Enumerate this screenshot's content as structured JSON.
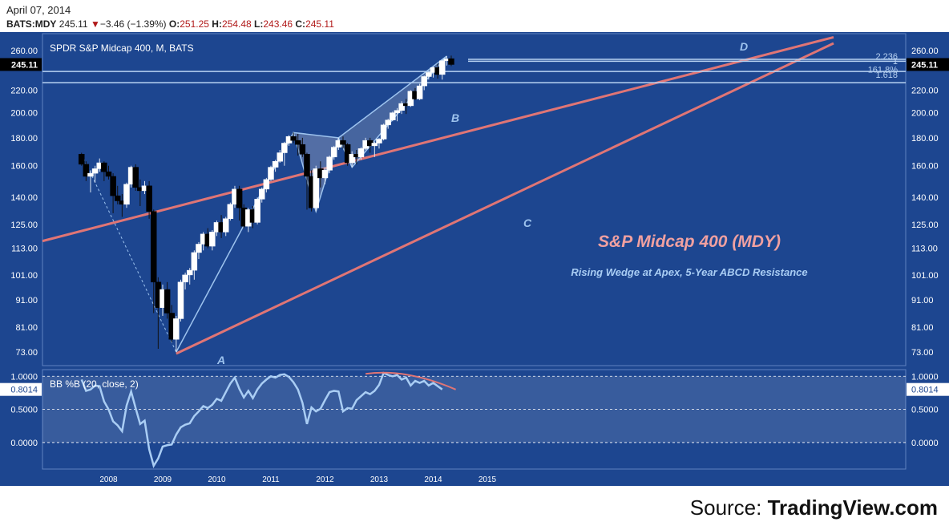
{
  "header": {
    "date": "April 07, 2014",
    "symbol": "BATS:MDY",
    "last": "245.11",
    "change": "−3.46 (−1.39%)",
    "open_label": "O:",
    "open": "251.25",
    "high_label": "H:",
    "high": "254.48",
    "low_label": "L:",
    "low": "243.46",
    "close_label": "C:",
    "close": "245.11"
  },
  "source": {
    "prefix": "Source: ",
    "brand": "TradingView.com"
  },
  "colors": {
    "panel_bg": "#1d4690",
    "up_candle": "#ffffff",
    "down_candle": "#000000",
    "wedge_line": "#e07575",
    "abcd_line": "#9dc3ee",
    "fib_line": "#b9d3f2",
    "indicator_line": "#a9cdf4",
    "title_color": "#f0a0a0",
    "subtitle_color": "#a9cdf4",
    "axis_text": "#ffffff"
  },
  "chart_data": [
    {
      "type": "candlestick",
      "title": "SPDR S&P Midcap 400, M, BATS",
      "scale": "log",
      "y_ticks": [
        "260.00",
        "245.11",
        "220.00",
        "200.00",
        "180.00",
        "160.00",
        "140.00",
        "125.00",
        "113.00",
        "101.00",
        "91.00",
        "81.00",
        "73.00"
      ],
      "last_price_label": "245.11",
      "x_ticks": [
        "2008",
        "2009",
        "2010",
        "2011",
        "2012",
        "2013",
        "2014",
        "2015"
      ],
      "annotations": {
        "main_title": "S&P Midcap 400 (MDY)",
        "subtitle": "Rising Wedge at Apex, 5-Year ABCD Resistance",
        "points": [
          "A",
          "B",
          "C",
          "D"
        ],
        "fib_labels": [
          "2.236",
          "1",
          "161.8%",
          "1.618"
        ]
      },
      "candles": [
        {
          "d": "2007-06",
          "o": 168,
          "h": 169,
          "l": 160,
          "c": 161
        },
        {
          "d": "2007-07",
          "o": 161,
          "h": 163,
          "l": 150,
          "c": 153
        },
        {
          "d": "2007-08",
          "o": 153,
          "h": 157,
          "l": 143,
          "c": 155
        },
        {
          "d": "2007-09",
          "o": 155,
          "h": 160,
          "l": 149,
          "c": 158
        },
        {
          "d": "2007-10",
          "o": 158,
          "h": 165,
          "l": 156,
          "c": 162
        },
        {
          "d": "2007-11",
          "o": 162,
          "h": 163,
          "l": 150,
          "c": 156
        },
        {
          "d": "2007-12",
          "o": 156,
          "h": 160,
          "l": 151,
          "c": 153
        },
        {
          "d": "2008-01",
          "o": 153,
          "h": 155,
          "l": 131,
          "c": 141
        },
        {
          "d": "2008-02",
          "o": 141,
          "h": 147,
          "l": 136,
          "c": 138
        },
        {
          "d": "2008-03",
          "o": 138,
          "h": 142,
          "l": 129,
          "c": 136
        },
        {
          "d": "2008-04",
          "o": 136,
          "h": 149,
          "l": 134,
          "c": 148
        },
        {
          "d": "2008-05",
          "o": 148,
          "h": 160,
          "l": 146,
          "c": 159
        },
        {
          "d": "2008-06",
          "o": 159,
          "h": 161,
          "l": 144,
          "c": 146
        },
        {
          "d": "2008-07",
          "o": 146,
          "h": 151,
          "l": 135,
          "c": 144
        },
        {
          "d": "2008-08",
          "o": 144,
          "h": 150,
          "l": 142,
          "c": 147
        },
        {
          "d": "2008-09",
          "o": 147,
          "h": 150,
          "l": 128,
          "c": 132
        },
        {
          "d": "2008-10",
          "o": 132,
          "h": 133,
          "l": 86,
          "c": 98
        },
        {
          "d": "2008-11",
          "o": 98,
          "h": 100,
          "l": 74,
          "c": 88
        },
        {
          "d": "2008-12",
          "o": 88,
          "h": 97,
          "l": 85,
          "c": 95
        },
        {
          "d": "2009-01",
          "o": 95,
          "h": 98,
          "l": 84,
          "c": 86
        },
        {
          "d": "2009-02",
          "o": 86,
          "h": 89,
          "l": 76,
          "c": 77
        },
        {
          "d": "2009-03",
          "o": 77,
          "h": 85,
          "l": 73,
          "c": 84
        },
        {
          "d": "2009-04",
          "o": 84,
          "h": 99,
          "l": 83,
          "c": 98
        },
        {
          "d": "2009-05",
          "o": 98,
          "h": 102,
          "l": 95,
          "c": 101
        },
        {
          "d": "2009-06",
          "o": 101,
          "h": 104,
          "l": 97,
          "c": 103
        },
        {
          "d": "2009-07",
          "o": 103,
          "h": 112,
          "l": 99,
          "c": 111
        },
        {
          "d": "2009-08",
          "o": 111,
          "h": 116,
          "l": 108,
          "c": 115
        },
        {
          "d": "2009-09",
          "o": 115,
          "h": 121,
          "l": 112,
          "c": 120
        },
        {
          "d": "2009-10",
          "o": 120,
          "h": 123,
          "l": 113,
          "c": 114
        },
        {
          "d": "2009-11",
          "o": 114,
          "h": 122,
          "l": 112,
          "c": 121
        },
        {
          "d": "2009-12",
          "o": 121,
          "h": 127,
          "l": 119,
          "c": 126
        },
        {
          "d": "2010-01",
          "o": 126,
          "h": 130,
          "l": 118,
          "c": 121
        },
        {
          "d": "2010-02",
          "o": 121,
          "h": 129,
          "l": 119,
          "c": 128
        },
        {
          "d": "2010-03",
          "o": 128,
          "h": 137,
          "l": 127,
          "c": 136
        },
        {
          "d": "2010-04",
          "o": 136,
          "h": 147,
          "l": 134,
          "c": 145
        },
        {
          "d": "2010-05",
          "o": 145,
          "h": 147,
          "l": 127,
          "c": 134
        },
        {
          "d": "2010-06",
          "o": 134,
          "h": 136,
          "l": 123,
          "c": 124
        },
        {
          "d": "2010-07",
          "o": 124,
          "h": 134,
          "l": 121,
          "c": 133
        },
        {
          "d": "2010-08",
          "o": 133,
          "h": 135,
          "l": 123,
          "c": 126
        },
        {
          "d": "2010-09",
          "o": 126,
          "h": 140,
          "l": 125,
          "c": 139
        },
        {
          "d": "2010-10",
          "o": 139,
          "h": 146,
          "l": 137,
          "c": 145
        },
        {
          "d": "2010-11",
          "o": 145,
          "h": 152,
          "l": 143,
          "c": 151
        },
        {
          "d": "2010-12",
          "o": 151,
          "h": 160,
          "l": 150,
          "c": 159
        },
        {
          "d": "2011-01",
          "o": 159,
          "h": 164,
          "l": 156,
          "c": 163
        },
        {
          "d": "2011-02",
          "o": 163,
          "h": 171,
          "l": 162,
          "c": 169
        },
        {
          "d": "2011-03",
          "o": 169,
          "h": 177,
          "l": 160,
          "c": 176
        },
        {
          "d": "2011-04",
          "o": 176,
          "h": 182,
          "l": 174,
          "c": 181
        },
        {
          "d": "2011-05",
          "o": 181,
          "h": 184,
          "l": 176,
          "c": 178
        },
        {
          "d": "2011-06",
          "o": 178,
          "h": 183,
          "l": 167,
          "c": 175
        },
        {
          "d": "2011-07",
          "o": 175,
          "h": 180,
          "l": 166,
          "c": 168
        },
        {
          "d": "2011-08",
          "o": 168,
          "h": 169,
          "l": 133,
          "c": 153
        },
        {
          "d": "2011-09",
          "o": 153,
          "h": 157,
          "l": 132,
          "c": 134
        },
        {
          "d": "2011-10",
          "o": 134,
          "h": 160,
          "l": 132,
          "c": 158
        },
        {
          "d": "2011-11",
          "o": 158,
          "h": 163,
          "l": 146,
          "c": 152
        },
        {
          "d": "2011-12",
          "o": 152,
          "h": 159,
          "l": 148,
          "c": 157
        },
        {
          "d": "2012-01",
          "o": 157,
          "h": 167,
          "l": 155,
          "c": 166
        },
        {
          "d": "2012-02",
          "o": 166,
          "h": 174,
          "l": 164,
          "c": 173
        },
        {
          "d": "2012-03",
          "o": 173,
          "h": 180,
          "l": 171,
          "c": 178
        },
        {
          "d": "2012-04",
          "o": 178,
          "h": 181,
          "l": 172,
          "c": 175
        },
        {
          "d": "2012-05",
          "o": 175,
          "h": 176,
          "l": 160,
          "c": 162
        },
        {
          "d": "2012-06",
          "o": 162,
          "h": 170,
          "l": 159,
          "c": 168
        },
        {
          "d": "2012-07",
          "o": 168,
          "h": 171,
          "l": 161,
          "c": 166
        },
        {
          "d": "2012-08",
          "o": 166,
          "h": 173,
          "l": 164,
          "c": 172
        },
        {
          "d": "2012-09",
          "o": 172,
          "h": 180,
          "l": 171,
          "c": 178
        },
        {
          "d": "2012-10",
          "o": 178,
          "h": 180,
          "l": 169,
          "c": 174
        },
        {
          "d": "2012-11",
          "o": 174,
          "h": 177,
          "l": 166,
          "c": 176
        },
        {
          "d": "2012-12",
          "o": 176,
          "h": 180,
          "l": 172,
          "c": 179
        },
        {
          "d": "2013-01",
          "o": 179,
          "h": 191,
          "l": 178,
          "c": 190
        },
        {
          "d": "2013-02",
          "o": 190,
          "h": 195,
          "l": 187,
          "c": 194
        },
        {
          "d": "2013-03",
          "o": 194,
          "h": 201,
          "l": 193,
          "c": 200
        },
        {
          "d": "2013-04",
          "o": 200,
          "h": 204,
          "l": 193,
          "c": 202
        },
        {
          "d": "2013-05",
          "o": 202,
          "h": 210,
          "l": 199,
          "c": 208
        },
        {
          "d": "2013-06",
          "o": 208,
          "h": 212,
          "l": 199,
          "c": 206
        },
        {
          "d": "2013-07",
          "o": 206,
          "h": 220,
          "l": 205,
          "c": 219
        },
        {
          "d": "2013-08",
          "o": 219,
          "h": 222,
          "l": 211,
          "c": 212
        },
        {
          "d": "2013-09",
          "o": 212,
          "h": 226,
          "l": 211,
          "c": 224
        },
        {
          "d": "2013-10",
          "o": 224,
          "h": 234,
          "l": 220,
          "c": 233
        },
        {
          "d": "2013-11",
          "o": 233,
          "h": 238,
          "l": 230,
          "c": 237
        },
        {
          "d": "2013-12",
          "o": 237,
          "h": 243,
          "l": 232,
          "c": 242
        },
        {
          "d": "2014-01",
          "o": 242,
          "h": 246,
          "l": 231,
          "c": 235
        },
        {
          "d": "2014-02",
          "o": 235,
          "h": 250,
          "l": 230,
          "c": 249
        },
        {
          "d": "2014-03",
          "o": 249,
          "h": 254,
          "l": 244,
          "c": 251
        },
        {
          "d": "2014-04",
          "o": 251.25,
          "h": 254.48,
          "l": 243.46,
          "c": 245.11
        }
      ]
    },
    {
      "type": "line",
      "title": "BB %B (20, close, 2)",
      "last_value": "0.8014",
      "y_ticks": [
        "1.0000",
        "0.5000",
        "0.0000"
      ],
      "ylim": [
        -0.4,
        1.1
      ],
      "series": [
        {
          "name": "",
          "values": [
            0.95,
            0.78,
            0.8,
            0.86,
            0.85,
            0.62,
            0.5,
            0.32,
            0.26,
            0.17,
            0.56,
            0.77,
            0.52,
            0.28,
            0.33,
            -0.1,
            -0.35,
            -0.24,
            -0.06,
            -0.04,
            -0.03,
            0.12,
            0.23,
            0.27,
            0.29,
            0.4,
            0.47,
            0.55,
            0.52,
            0.57,
            0.66,
            0.63,
            0.76,
            0.89,
            0.98,
            0.81,
            0.68,
            0.78,
            0.67,
            0.8,
            0.89,
            0.95,
            1.0,
            0.98,
            1.02,
            1.03,
            0.99,
            0.91,
            0.8,
            0.6,
            0.28,
            0.53,
            0.47,
            0.51,
            0.64,
            0.76,
            0.78,
            0.77,
            0.47,
            0.52,
            0.51,
            0.64,
            0.7,
            0.76,
            0.73,
            0.78,
            0.87,
            1.05,
            1.02,
            1.0,
            1.02,
            0.95,
            0.98,
            0.86,
            0.93,
            0.9,
            0.93,
            0.86,
            0.9,
            0.85,
            0.8014
          ]
        }
      ]
    }
  ]
}
